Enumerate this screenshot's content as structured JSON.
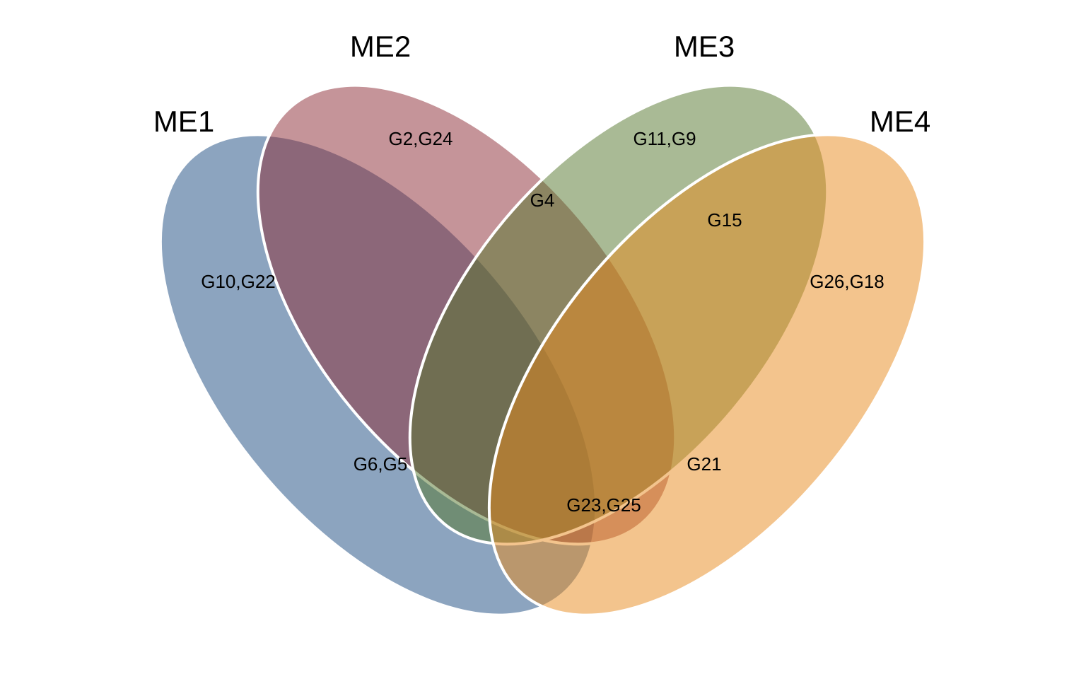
{
  "sets": [
    {
      "id": "ME1",
      "label": "ME1",
      "color": "#1A4A7F"
    },
    {
      "id": "ME2",
      "label": "ME2",
      "color": "#8B2A33"
    },
    {
      "id": "ME3",
      "label": "ME3",
      "color": "#53762C"
    },
    {
      "id": "ME4",
      "label": "ME4",
      "color": "#E8891C"
    }
  ],
  "regions": {
    "me1_only": "G10,G22",
    "me2_only": "G2,G24",
    "me3_only": "G11,G9",
    "me4_only": "G26,G18",
    "me2_me3": "G4",
    "me3_me4": "G15",
    "me1_me2_me3_me4_left": "G6,G5",
    "me1_me4": "G23,G25",
    "me2_me4": "G21"
  },
  "style": {
    "fill_opacity": 0.5,
    "outline_color": "#FFFFFF"
  }
}
